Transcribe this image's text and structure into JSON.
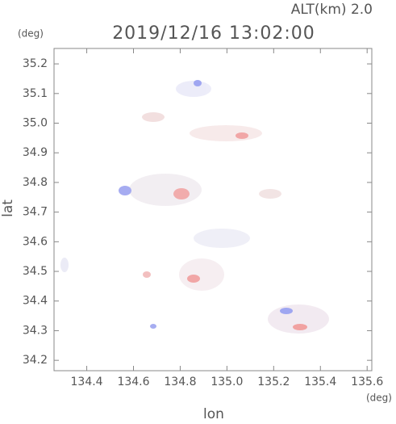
{
  "chart_data": {
    "type": "radar-map",
    "title": "2019/12/16 13:02:00",
    "subtitle": "ALT(km)  2.0",
    "x_label": "lon",
    "y_label": "lat",
    "x_unit": "(deg)",
    "y_unit": "(deg)",
    "xlim": [
      134.26,
      135.62
    ],
    "ylim": [
      34.165,
      35.252
    ],
    "xticks": [
      134.4,
      134.6,
      134.8,
      {
        "value": 135.0,
        "label": "135.0"
      },
      135.2,
      135.4,
      135.6
    ],
    "yticks": [
      34.2,
      34.3,
      34.4,
      34.5,
      34.6,
      34.7,
      34.8,
      34.9,
      {
        "value": 35.0,
        "label": "35.0"
      },
      35.1,
      35.2
    ]
  }
}
